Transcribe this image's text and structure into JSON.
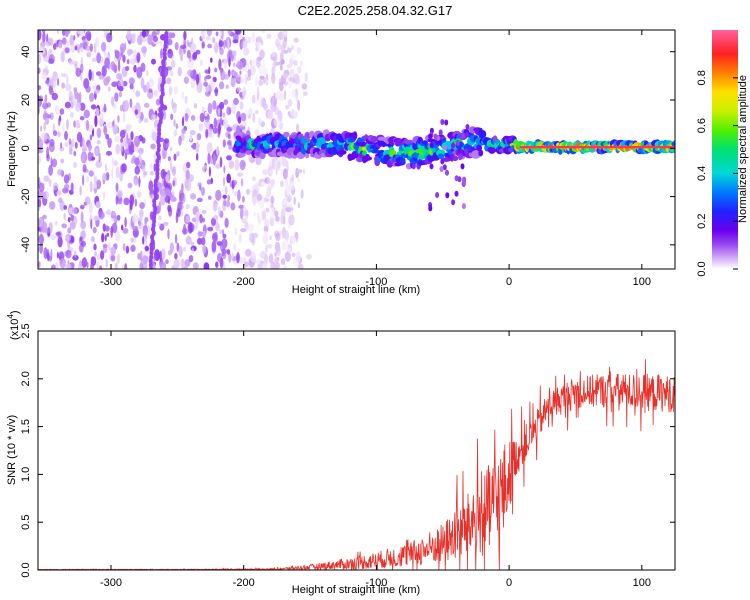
{
  "figure_title": "C2E2.2025.258.04.32.G17",
  "chart_data": [
    {
      "type": "heatmap",
      "name": "spectrogram",
      "xlabel": "Height of straight line (km)",
      "ylabel": "Frequency (Hz)",
      "xlim": [
        -355,
        125
      ],
      "ylim": [
        -50,
        49
      ],
      "xticks": [
        -300,
        -200,
        -100,
        0,
        100
      ],
      "xtick_labels": [
        "-300",
        "-200",
        "-100",
        "0",
        "100"
      ],
      "yticks": [
        -40,
        -20,
        0,
        20,
        40
      ],
      "ytick_labels": [
        "-40",
        "-20",
        "0",
        "20",
        "40"
      ],
      "colorbar": {
        "label": "Normalized spectral amplitude",
        "range": [
          0,
          1
        ],
        "ticks": [
          0.0,
          0.2,
          0.4,
          0.6,
          0.8
        ],
        "tick_labels": [
          "0.0",
          "0.2",
          "0.4",
          "0.6",
          "0.8"
        ],
        "colormap": [
          "#ffffff",
          "#d8b8f8",
          "#9a4cf0",
          "#6a00f0",
          "#2020ff",
          "#0078ff",
          "#00d8d8",
          "#00e070",
          "#50f000",
          "#c8f000",
          "#ffe000",
          "#ff8000",
          "#ff2020",
          "#ff60a0"
        ]
      },
      "features": [
        {
          "label": "broadband noise",
          "height_km": [
            -355,
            -165
          ],
          "freq_hz": [
            -50,
            49
          ],
          "amplitude": 0.05
        },
        {
          "label": "signal track",
          "height_km": [
            -205,
            125
          ],
          "freq_hz": [
            -5,
            6
          ],
          "amplitude_at_top": 1.0
        },
        {
          "label": "dispersed blob",
          "height_km": [
            -60,
            -30
          ],
          "freq_hz": [
            -25,
            12
          ],
          "amplitude": 0.2
        }
      ]
    },
    {
      "type": "line",
      "name": "snr",
      "xlabel": "Height of straight line (km)",
      "ylabel": "SNR (10 * v/v)",
      "y_multiplier": "(x10",
      "y_exponent": "4",
      "y_multiplier_close": ")",
      "xlim": [
        -355,
        125
      ],
      "ylim": [
        0,
        2.5
      ],
      "xticks": [
        -300,
        -200,
        -100,
        0,
        100
      ],
      "xtick_labels": [
        "-300",
        "-200",
        "-100",
        "0",
        "100"
      ],
      "yticks": [
        0.0,
        0.5,
        1.0,
        1.5,
        2.0,
        2.5
      ],
      "ytick_labels": [
        "0.0",
        "0.5",
        "1.0",
        "1.5",
        "2.0",
        "2.5"
      ],
      "series": [
        {
          "name": "SNR",
          "color": "#e8302a",
          "envelope_x": [
            -355,
            -250,
            -175,
            -150,
            -125,
            -100,
            -75,
            -50,
            -35,
            -20,
            -5,
            5,
            20,
            30,
            50,
            75,
            100,
            125
          ],
          "envelope_mean": [
            0.005,
            0.005,
            0.01,
            0.03,
            0.06,
            0.1,
            0.16,
            0.28,
            0.42,
            0.58,
            0.78,
            1.18,
            1.48,
            1.72,
            1.86,
            1.88,
            1.86,
            1.84
          ],
          "envelope_spread": [
            0.003,
            0.004,
            0.01,
            0.04,
            0.08,
            0.13,
            0.18,
            0.3,
            0.45,
            0.6,
            0.8,
            0.3,
            0.25,
            0.22,
            0.24,
            0.26,
            0.28,
            0.28
          ]
        }
      ]
    }
  ]
}
